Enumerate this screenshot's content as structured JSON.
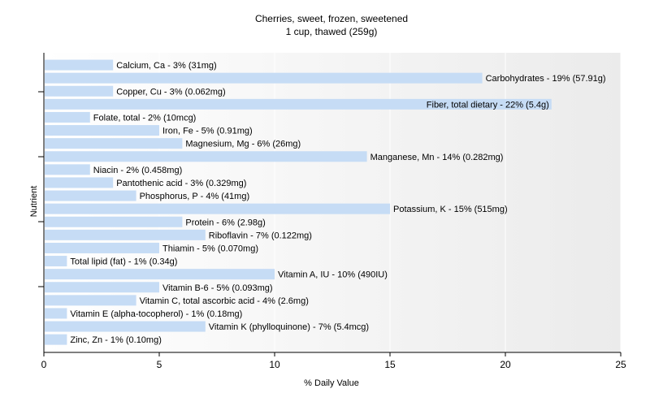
{
  "chart_data": {
    "type": "bar",
    "orientation": "horizontal",
    "title": "Cherries, sweet, frozen, sweetened",
    "subtitle": "1 cup, thawed (259g)",
    "xlabel": "% Daily Value",
    "ylabel": "Nutrient",
    "xlim": [
      0,
      25
    ],
    "xticks": [
      "0",
      "5",
      "10",
      "15",
      "20",
      "25"
    ],
    "grid": true,
    "bar_color": "#c6dcf5",
    "categories": [
      "Calcium, Ca",
      "Carbohydrates",
      "Copper, Cu",
      "Fiber, total dietary",
      "Folate, total",
      "Iron, Fe",
      "Magnesium, Mg",
      "Manganese, Mn",
      "Niacin",
      "Pantothenic acid",
      "Phosphorus, P",
      "Potassium, K",
      "Protein",
      "Riboflavin",
      "Thiamin",
      "Total lipid (fat)",
      "Vitamin A, IU",
      "Vitamin B-6",
      "Vitamin C, total ascorbic acid",
      "Vitamin E (alpha-tocopherol)",
      "Vitamin K (phylloquinone)",
      "Zinc, Zn"
    ],
    "values": [
      3,
      19,
      3,
      22,
      2,
      5,
      6,
      14,
      2,
      3,
      4,
      15,
      6,
      7,
      5,
      1,
      10,
      5,
      4,
      1,
      7,
      1
    ],
    "labels": [
      "Calcium, Ca - 3% (31mg)",
      "Carbohydrates - 19% (57.91g)",
      "Copper, Cu - 3% (0.062mg)",
      "Fiber, total dietary - 22% (5.4g)",
      "Folate, total - 2% (10mcg)",
      "Iron, Fe - 5% (0.91mg)",
      "Magnesium, Mg - 6% (26mg)",
      "Manganese, Mn - 14% (0.282mg)",
      "Niacin - 2% (0.458mg)",
      "Pantothenic acid - 3% (0.329mg)",
      "Phosphorus, P - 4% (41mg)",
      "Potassium, K - 15% (515mg)",
      "Protein - 6% (2.98g)",
      "Riboflavin - 7% (0.122mg)",
      "Thiamin - 5% (0.070mg)",
      "Total lipid (fat) - 1% (0.34g)",
      "Vitamin A, IU - 10% (490IU)",
      "Vitamin B-6 - 5% (0.093mg)",
      "Vitamin C, total ascorbic acid - 4% (2.6mg)",
      "Vitamin E (alpha-tocopherol) - 1% (0.18mg)",
      "Vitamin K (phylloquinone) - 7% (5.4mcg)",
      "Zinc, Zn - 1% (0.10mg)"
    ]
  }
}
